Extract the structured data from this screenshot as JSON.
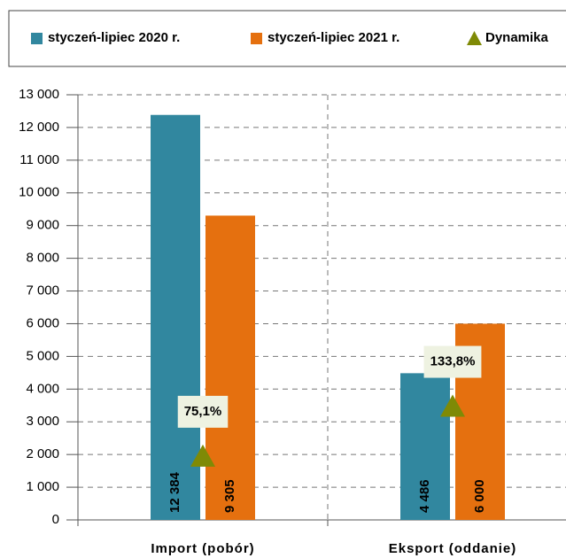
{
  "chart_data": {
    "type": "bar",
    "categories": [
      "Import (pobór)",
      "Eksport (oddanie)"
    ],
    "series": [
      {
        "name": "styczeń-lipiec 2020 r.",
        "color": "#31879f",
        "values": [
          12384,
          4486
        ],
        "value_labels": [
          "12 384",
          "4 486"
        ]
      },
      {
        "name": "styczeń-lipiec 2021 r.",
        "color": "#e5700f",
        "values": [
          9305,
          6000
        ],
        "value_labels": [
          "9 305",
          "6 000"
        ]
      },
      {
        "name": "Dynamika",
        "color": "#7f8a06",
        "axis": "y2",
        "values": [
          75.1,
          133.8
        ],
        "value_labels": [
          "75,1%",
          "133,8%"
        ]
      }
    ],
    "ylim": [
      0,
      13000
    ],
    "yticks": [
      0,
      {
        "value": 1000,
        "label": "1 000"
      },
      {
        "value": 2000,
        "label": "2 000"
      },
      {
        "value": 3000,
        "label": "3 000"
      },
      {
        "value": 4000,
        "label": "4 000"
      },
      {
        "value": 5000,
        "label": "5 000"
      },
      {
        "value": 6000,
        "label": "6 000"
      },
      {
        "value": 7000,
        "label": "7 000"
      },
      {
        "value": 8000,
        "label": "8 000"
      },
      {
        "value": 9000,
        "label": "9 000"
      },
      {
        "value": 10000,
        "label": "10 000"
      },
      {
        "value": 11000,
        "label": "11 000"
      },
      {
        "value": 12000,
        "label": "12 000"
      },
      {
        "value": 13000,
        "label": "13 000"
      }
    ],
    "y2lim": [
      0,
      500
    ],
    "grid": true,
    "legend": "top"
  }
}
